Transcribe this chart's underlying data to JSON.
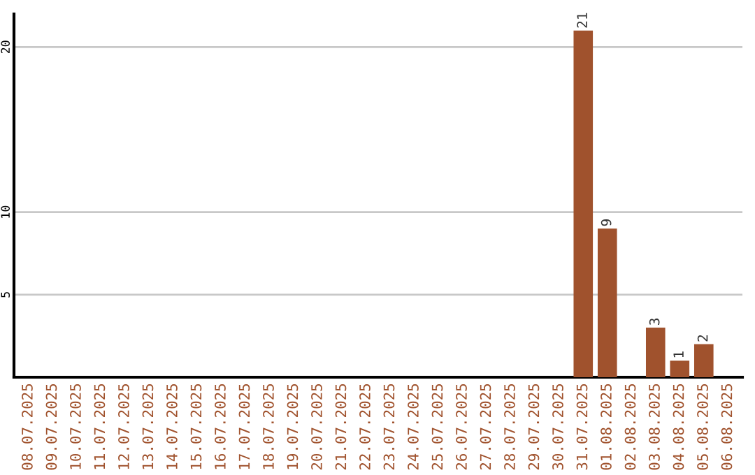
{
  "chart_data": {
    "type": "bar",
    "categories": [
      "08.07.2025",
      "09.07.2025",
      "10.07.2025",
      "11.07.2025",
      "12.07.2025",
      "13.07.2025",
      "14.07.2025",
      "15.07.2025",
      "16.07.2025",
      "17.07.2025",
      "18.07.2025",
      "19.07.2025",
      "20.07.2025",
      "21.07.2025",
      "22.07.2025",
      "23.07.2025",
      "24.07.2025",
      "25.07.2025",
      "26.07.2025",
      "27.07.2025",
      "28.07.2025",
      "29.07.2025",
      "30.07.2025",
      "31.07.2025",
      "01.08.2025",
      "02.08.2025",
      "03.08.2025",
      "04.08.2025",
      "05.08.2025",
      "06.08.2025"
    ],
    "values": [
      0,
      0,
      0,
      0,
      0,
      0,
      0,
      0,
      0,
      0,
      0,
      0,
      0,
      0,
      0,
      0,
      0,
      0,
      0,
      0,
      0,
      0,
      0,
      21,
      9,
      0,
      3,
      1,
      2,
      0
    ],
    "value_labels": [
      null,
      null,
      null,
      null,
      null,
      null,
      null,
      null,
      null,
      null,
      null,
      null,
      null,
      null,
      null,
      null,
      null,
      null,
      null,
      null,
      null,
      null,
      null,
      "21",
      "9",
      null,
      "3",
      "1",
      "2",
      null
    ],
    "color": "#a0522d",
    "ylim": [
      0,
      22
    ],
    "yticks": [
      5,
      10,
      20
    ],
    "grid": "y"
  }
}
